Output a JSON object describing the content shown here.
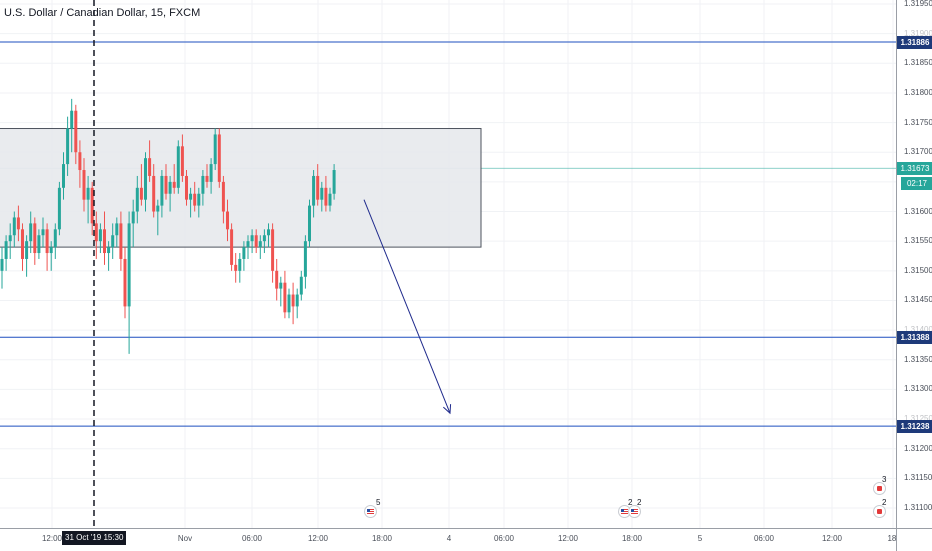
{
  "header": {
    "symbol_title": "U.S. Dollar / Canadian Dollar, 15, FXCM"
  },
  "price_axis": {
    "ticks": [
      "1.31950",
      "1.31900",
      "1.31850",
      "1.31800",
      "1.31750",
      "1.31700",
      "1.31650",
      "1.31600",
      "1.31550",
      "1.31500",
      "1.31450",
      "1.31400",
      "1.31350",
      "1.31300",
      "1.31250",
      "1.31200",
      "1.31150",
      "1.31100"
    ],
    "level_tags": [
      "1.31886",
      "1.31388",
      "1.31238"
    ],
    "current_price": "1.31673",
    "countdown": "02:17"
  },
  "time_axis": {
    "labels": [
      "12:00",
      "Nov",
      "06:00",
      "12:00",
      "18:00",
      "4",
      "06:00",
      "12:00",
      "18:00",
      "5",
      "06:00",
      "12:00",
      "18:"
    ],
    "crosshair_label": "31 Oct '19   15:30"
  },
  "events": [
    {
      "count": "5"
    },
    {
      "count": "2"
    },
    {
      "count": "2"
    },
    {
      "count": "3"
    },
    {
      "count": "2"
    }
  ],
  "colors": {
    "bull": "#26a69a",
    "bear": "#ef5350",
    "level_line": "#1e4fbf",
    "rect_fill": "#e8eaee",
    "rect_border": "#444a55",
    "arrow": "#1f2a8c",
    "price_line": "#26a69a"
  },
  "chart_data": {
    "type": "candlestick",
    "symbol": "U.S. Dollar / Canadian Dollar",
    "interval": "15",
    "source": "FXCM",
    "y_range": [
      1.3107,
      1.3198
    ],
    "horizontal_levels": [
      1.31886,
      1.31388,
      1.31238
    ],
    "last_price": 1.31673,
    "range_box": {
      "high": 1.3174,
      "low": 1.3154
    },
    "projection_arrow": {
      "from_price": 1.3162,
      "to_price": 1.3126
    },
    "candles": [
      [
        1.315,
        1.3154,
        1.3147,
        1.3152
      ],
      [
        1.3152,
        1.3156,
        1.315,
        1.3155
      ],
      [
        1.3155,
        1.3158,
        1.3152,
        1.3156
      ],
      [
        1.3156,
        1.316,
        1.3154,
        1.3159
      ],
      [
        1.3159,
        1.3161,
        1.3155,
        1.3157
      ],
      [
        1.3157,
        1.3158,
        1.315,
        1.3152
      ],
      [
        1.3152,
        1.3156,
        1.3149,
        1.3155
      ],
      [
        1.3155,
        1.316,
        1.3153,
        1.3158
      ],
      [
        1.3158,
        1.3159,
        1.3151,
        1.3153
      ],
      [
        1.3153,
        1.3157,
        1.3152,
        1.3156
      ],
      [
        1.3156,
        1.3159,
        1.3154,
        1.3157
      ],
      [
        1.3157,
        1.3158,
        1.315,
        1.3153
      ],
      [
        1.3153,
        1.3155,
        1.315,
        1.3154
      ],
      [
        1.3154,
        1.3158,
        1.3152,
        1.3157
      ],
      [
        1.3157,
        1.3165,
        1.3156,
        1.3164
      ],
      [
        1.3164,
        1.317,
        1.3162,
        1.3168
      ],
      [
        1.3168,
        1.3176,
        1.3166,
        1.3174
      ],
      [
        1.3174,
        1.3179,
        1.317,
        1.3177
      ],
      [
        1.3177,
        1.3178,
        1.3168,
        1.317
      ],
      [
        1.317,
        1.3172,
        1.3164,
        1.3167
      ],
      [
        1.3167,
        1.3169,
        1.316,
        1.3162
      ],
      [
        1.3162,
        1.3166,
        1.3158,
        1.3164
      ],
      [
        1.3164,
        1.3165,
        1.3156,
        1.3158
      ],
      [
        1.3158,
        1.316,
        1.3152,
        1.3155
      ],
      [
        1.3155,
        1.3158,
        1.3153,
        1.3157
      ],
      [
        1.3157,
        1.316,
        1.3151,
        1.3153
      ],
      [
        1.3153,
        1.3155,
        1.315,
        1.3154
      ],
      [
        1.3154,
        1.3158,
        1.3152,
        1.3156
      ],
      [
        1.3156,
        1.3159,
        1.3154,
        1.3158
      ],
      [
        1.3158,
        1.316,
        1.315,
        1.3152
      ],
      [
        1.3152,
        1.3154,
        1.3142,
        1.3144
      ],
      [
        1.3144,
        1.316,
        1.3136,
        1.3158
      ],
      [
        1.3158,
        1.3162,
        1.3154,
        1.316
      ],
      [
        1.316,
        1.3166,
        1.3158,
        1.3164
      ],
      [
        1.3164,
        1.3168,
        1.3161,
        1.3162
      ],
      [
        1.3162,
        1.317,
        1.316,
        1.3169
      ],
      [
        1.3169,
        1.3172,
        1.3165,
        1.3166
      ],
      [
        1.3166,
        1.3168,
        1.3159,
        1.316
      ],
      [
        1.316,
        1.3162,
        1.3156,
        1.3161
      ],
      [
        1.3161,
        1.3167,
        1.3159,
        1.3166
      ],
      [
        1.3166,
        1.3168,
        1.3162,
        1.3163
      ],
      [
        1.3163,
        1.3166,
        1.316,
        1.3165
      ],
      [
        1.3165,
        1.3168,
        1.3163,
        1.3164
      ],
      [
        1.3164,
        1.3172,
        1.3163,
        1.3171
      ],
      [
        1.3171,
        1.3173,
        1.3165,
        1.3166
      ],
      [
        1.3166,
        1.3167,
        1.3161,
        1.3162
      ],
      [
        1.3162,
        1.3164,
        1.3159,
        1.3163
      ],
      [
        1.3163,
        1.3165,
        1.316,
        1.3161
      ],
      [
        1.3161,
        1.3164,
        1.3159,
        1.3163
      ],
      [
        1.3163,
        1.3167,
        1.3161,
        1.3166
      ],
      [
        1.3166,
        1.3168,
        1.3164,
        1.3165
      ],
      [
        1.3165,
        1.3169,
        1.3163,
        1.3168
      ],
      [
        1.3168,
        1.3174,
        1.3167,
        1.3173
      ],
      [
        1.3173,
        1.3174,
        1.3164,
        1.3165
      ],
      [
        1.3165,
        1.3166,
        1.3158,
        1.316
      ],
      [
        1.316,
        1.3162,
        1.3155,
        1.3157
      ],
      [
        1.3157,
        1.3158,
        1.315,
        1.3151
      ],
      [
        1.3151,
        1.3153,
        1.3148,
        1.315
      ],
      [
        1.315,
        1.3153,
        1.3148,
        1.3152
      ],
      [
        1.3152,
        1.3155,
        1.315,
        1.3154
      ],
      [
        1.3154,
        1.3156,
        1.3152,
        1.3155
      ],
      [
        1.3155,
        1.3157,
        1.3153,
        1.3156
      ],
      [
        1.3156,
        1.3157,
        1.3153,
        1.3154
      ],
      [
        1.3154,
        1.3156,
        1.3152,
        1.3155
      ],
      [
        1.3155,
        1.3157,
        1.3153,
        1.3156
      ],
      [
        1.3156,
        1.3158,
        1.3154,
        1.3157
      ],
      [
        1.3157,
        1.3158,
        1.3148,
        1.315
      ],
      [
        1.315,
        1.3152,
        1.3145,
        1.3147
      ],
      [
        1.3147,
        1.3149,
        1.3144,
        1.3148
      ],
      [
        1.3148,
        1.315,
        1.3142,
        1.3143
      ],
      [
        1.3143,
        1.3147,
        1.3142,
        1.3146
      ],
      [
        1.3146,
        1.3148,
        1.3141,
        1.3144
      ],
      [
        1.3144,
        1.3147,
        1.3142,
        1.3146
      ],
      [
        1.3146,
        1.315,
        1.3145,
        1.3149
      ],
      [
        1.3149,
        1.3156,
        1.3147,
        1.3155
      ],
      [
        1.3155,
        1.3162,
        1.3154,
        1.3161
      ],
      [
        1.3161,
        1.3167,
        1.3159,
        1.3166
      ],
      [
        1.3166,
        1.3168,
        1.3161,
        1.3162
      ],
      [
        1.3162,
        1.3165,
        1.316,
        1.3164
      ],
      [
        1.3164,
        1.3166,
        1.316,
        1.3161
      ],
      [
        1.3161,
        1.3164,
        1.316,
        1.3163
      ],
      [
        1.3163,
        1.3168,
        1.3162,
        1.3167
      ]
    ]
  }
}
